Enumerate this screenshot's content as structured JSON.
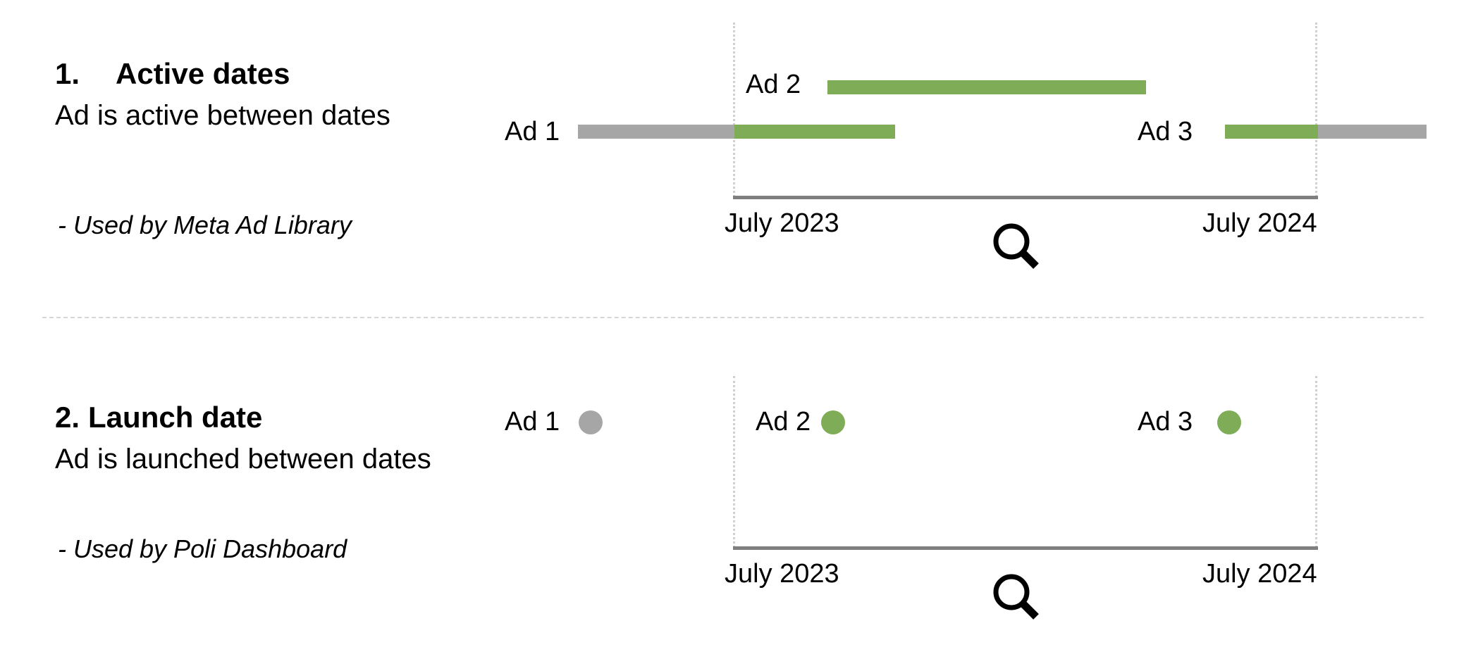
{
  "colors": {
    "active": "#7fac56",
    "inactive": "#a6a6a6",
    "axis": "#7f7f7f",
    "guide": "#d0d0d0"
  },
  "sections": [
    {
      "number": "1.",
      "title": "Active dates",
      "description": "Ad is active between dates",
      "used_by": "- Used by Meta Ad Library",
      "ads": [
        {
          "label": "Ad 1"
        },
        {
          "label": "Ad 2"
        },
        {
          "label": "Ad 3"
        }
      ],
      "axis": {
        "start_label": "July 2023",
        "end_label": "July 2024"
      },
      "icon": "magnifier-icon"
    },
    {
      "number": "2.",
      "title": "Launch date",
      "description": "Ad is launched between dates",
      "used_by": "- Used by Poli Dashboard",
      "ads": [
        {
          "label": "Ad 1"
        },
        {
          "label": "Ad 2"
        },
        {
          "label": "Ad 3"
        }
      ],
      "axis": {
        "start_label": "July 2023",
        "end_label": "July 2024"
      },
      "icon": "magnifier-icon"
    }
  ]
}
